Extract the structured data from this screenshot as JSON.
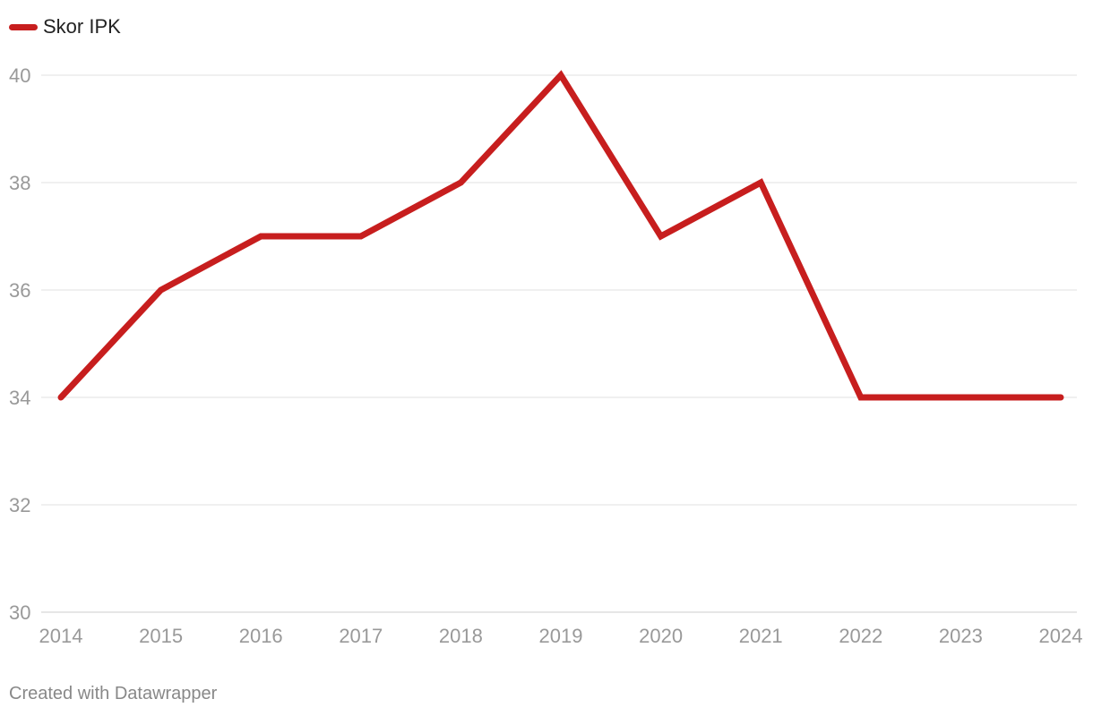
{
  "legend": {
    "label": "Skor IPK",
    "color": "#c71e1e"
  },
  "footer": {
    "credit": "Created with Datawrapper"
  },
  "chart_data": {
    "type": "line",
    "title": "",
    "xlabel": "",
    "ylabel": "",
    "x": [
      "2014",
      "2015",
      "2016",
      "2017",
      "2018",
      "2019",
      "2020",
      "2021",
      "2022",
      "2023",
      "2024"
    ],
    "series": [
      {
        "name": "Skor IPK",
        "color": "#c71e1e",
        "values": [
          34,
          36,
          37,
          37,
          38,
          40,
          37,
          38,
          34,
          34,
          34
        ]
      }
    ],
    "ylim": [
      30,
      40
    ],
    "yticks": [
      30,
      32,
      34,
      36,
      38,
      40
    ],
    "grid": true,
    "legend_position": "top-left"
  }
}
